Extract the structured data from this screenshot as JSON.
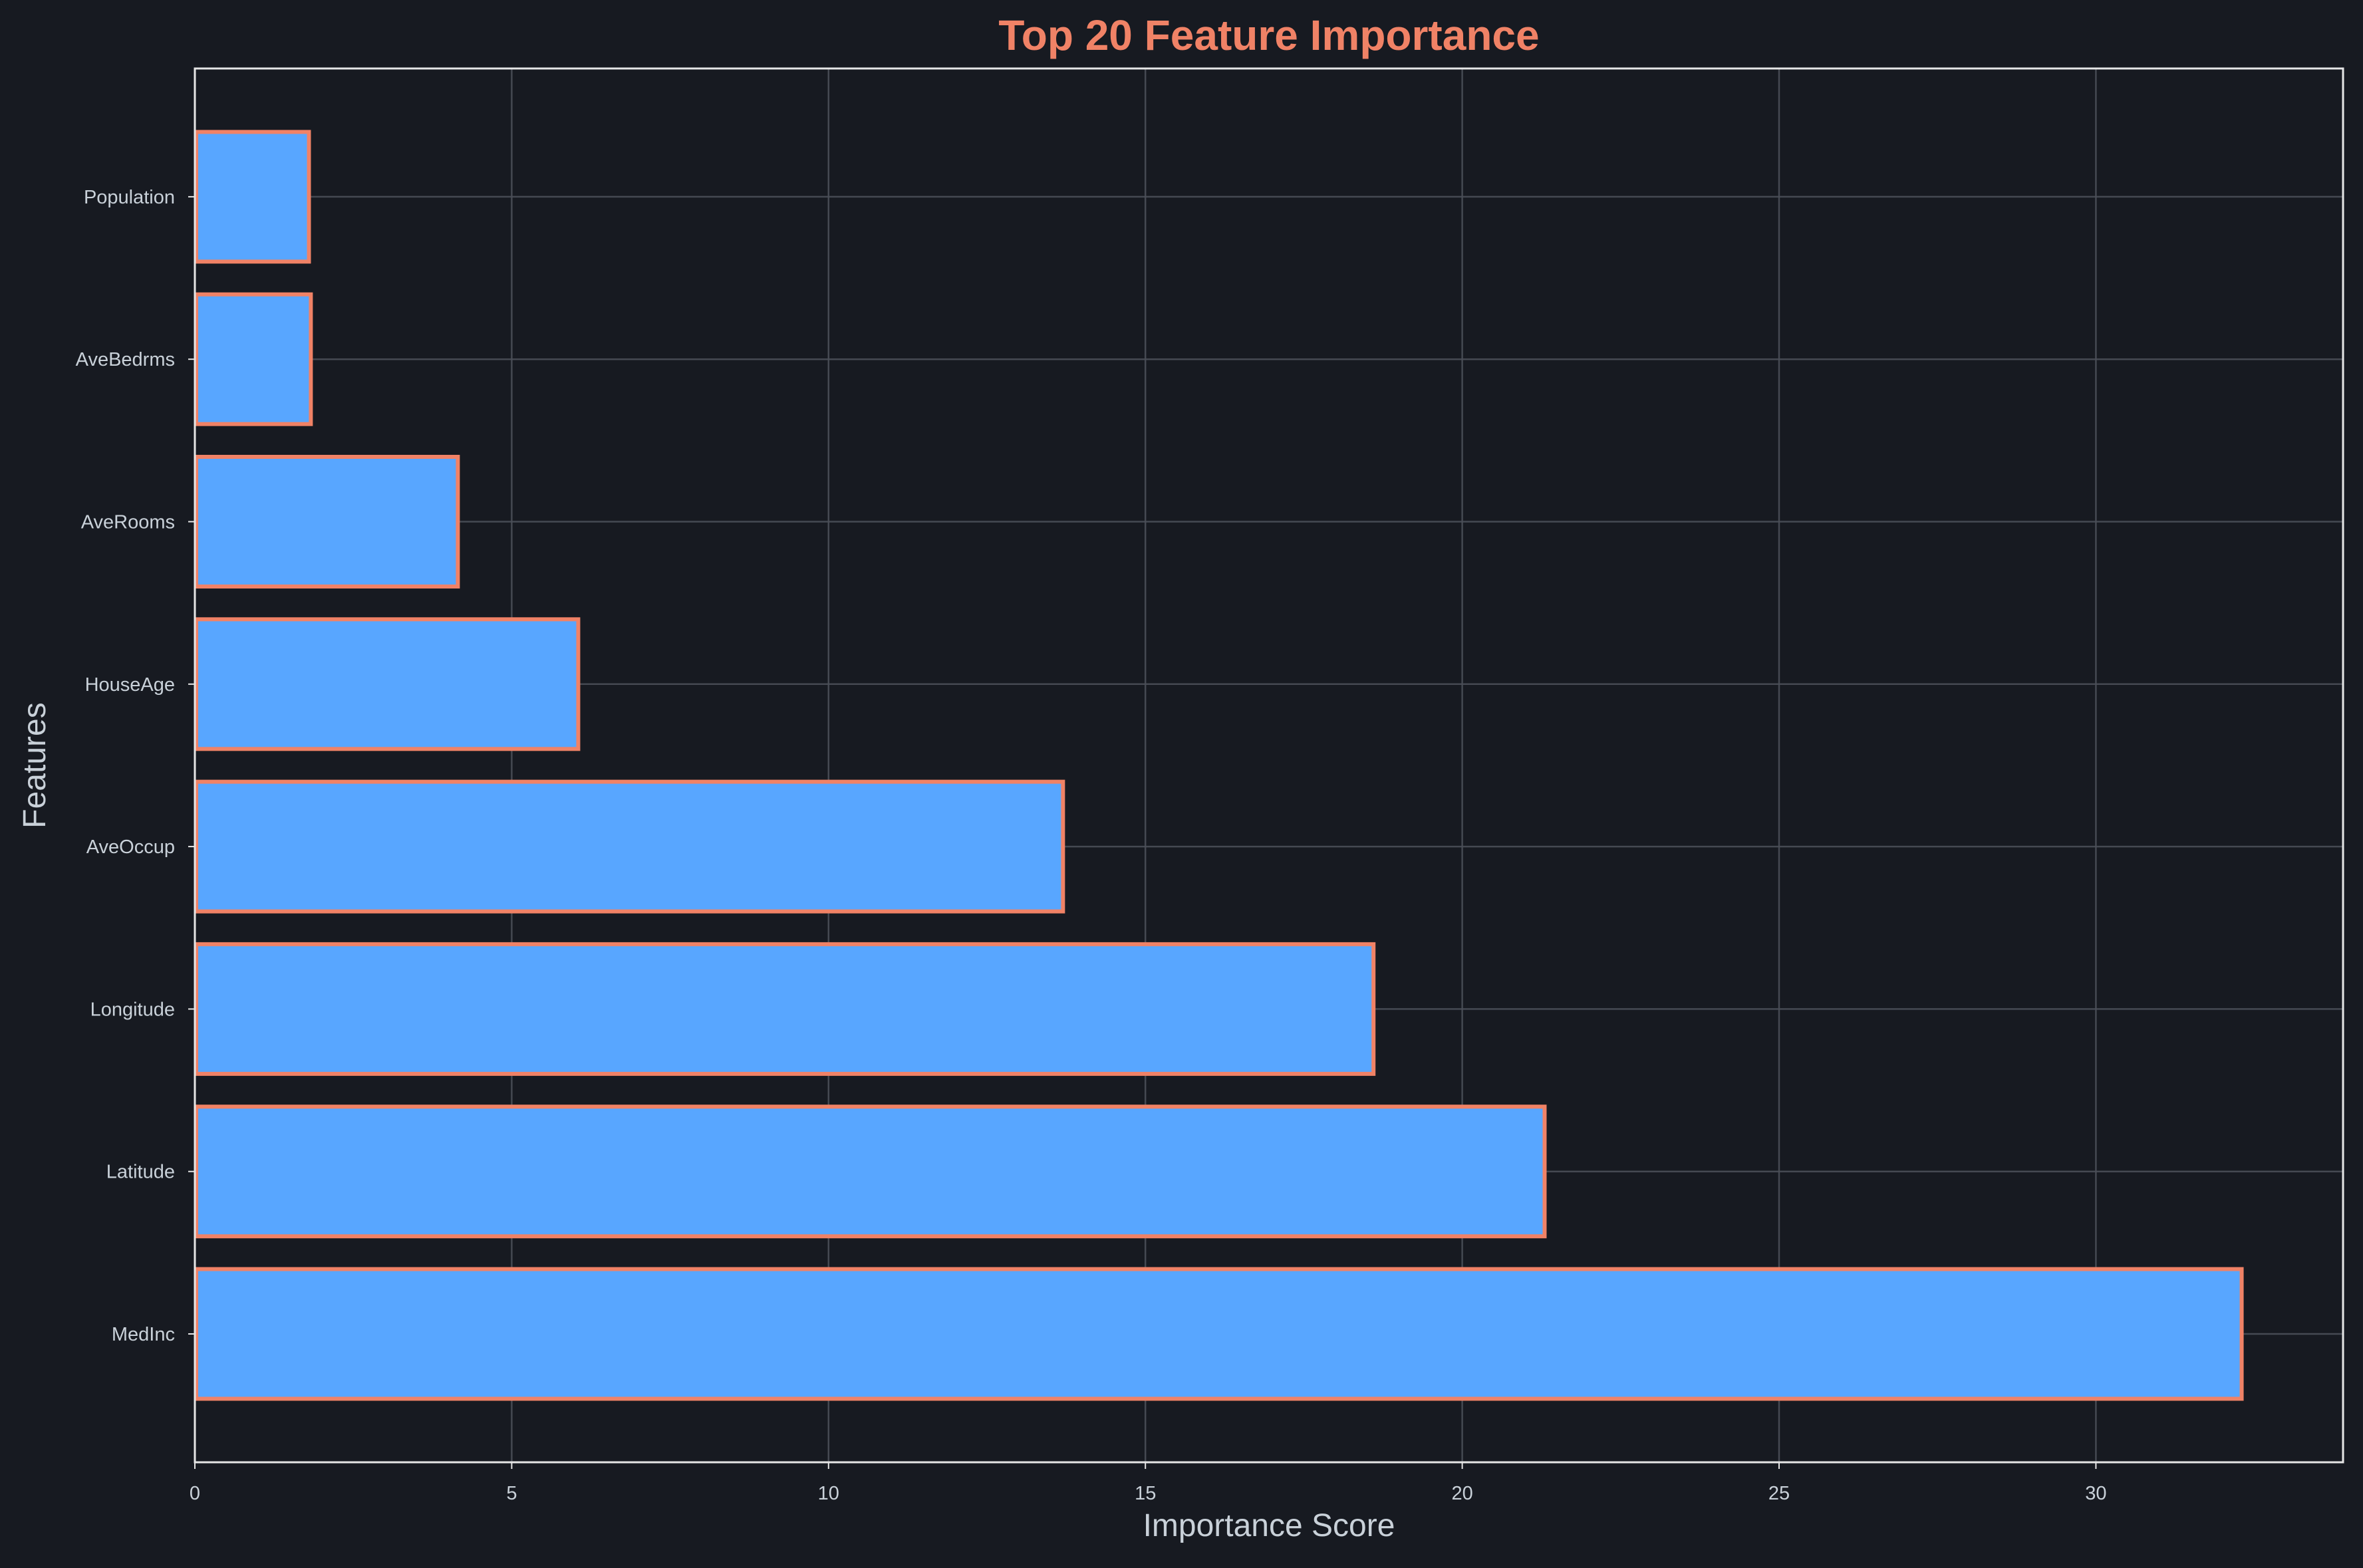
{
  "chart_data": {
    "type": "bar",
    "orientation": "horizontal",
    "title": "Top 20 Feature Importance",
    "xlabel": "Importance Score",
    "ylabel": "Features",
    "categories": [
      "MedInc",
      "Latitude",
      "Longitude",
      "AveOccup",
      "HouseAge",
      "AveRooms",
      "AveBedrms",
      "Population"
    ],
    "values": [
      32.3,
      21.3,
      18.6,
      13.7,
      6.05,
      4.15,
      1.83,
      1.8
    ],
    "xlim": [
      0,
      33.9
    ],
    "xticks": [
      0,
      5,
      10,
      15,
      20,
      25,
      30
    ],
    "grid": true,
    "legend": "none"
  },
  "colors": {
    "background": "#171a21",
    "bar_fill": "#58a6ff",
    "bar_edge": "#f08266",
    "title": "#f08266",
    "text": "#c9d1d9",
    "axes_frame": "#e6e6e6",
    "grid": "#4a4f58"
  }
}
